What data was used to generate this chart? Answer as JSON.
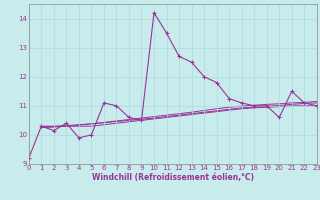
{
  "xlabel": "Windchill (Refroidissement éolien,°C)",
  "background_color": "#c8ecec",
  "grid_color": "#aadddd",
  "line_color": "#993399",
  "xlim": [
    0,
    23
  ],
  "ylim": [
    9,
    14.5
  ],
  "yticks": [
    9,
    10,
    11,
    12,
    13,
    14
  ],
  "xticks": [
    0,
    1,
    2,
    3,
    4,
    5,
    6,
    7,
    8,
    9,
    10,
    11,
    12,
    13,
    14,
    15,
    16,
    17,
    18,
    19,
    20,
    21,
    22,
    23
  ],
  "main_x": [
    0,
    1,
    2,
    3,
    4,
    5,
    6,
    7,
    8,
    9,
    10,
    11,
    12,
    13,
    14,
    15,
    16,
    17,
    18,
    19,
    20,
    21,
    22,
    23
  ],
  "main_y": [
    9.2,
    10.3,
    10.15,
    10.4,
    9.9,
    10.0,
    11.1,
    11.0,
    10.6,
    10.5,
    14.2,
    13.5,
    12.7,
    12.5,
    12.0,
    11.8,
    11.25,
    11.1,
    11.0,
    11.0,
    10.6,
    11.5,
    11.1,
    11.0
  ],
  "trend1_x": [
    1,
    2,
    3,
    4,
    5,
    6,
    7,
    8,
    9,
    10,
    11,
    12,
    13,
    14,
    15,
    16,
    17,
    18,
    19,
    20,
    21,
    22,
    23
  ],
  "trend1_y": [
    10.3,
    10.3,
    10.3,
    10.3,
    10.3,
    10.35,
    10.4,
    10.45,
    10.5,
    10.55,
    10.6,
    10.65,
    10.7,
    10.75,
    10.8,
    10.85,
    10.9,
    10.93,
    10.95,
    10.97,
    11.0,
    11.0,
    11.0
  ],
  "trend2_x": [
    1,
    2,
    3,
    4,
    5,
    6,
    7,
    8,
    9,
    10,
    11,
    12,
    13,
    14,
    15,
    16,
    17,
    18,
    19,
    20,
    21,
    22,
    23
  ],
  "trend2_y": [
    10.28,
    10.29,
    10.32,
    10.35,
    10.38,
    10.42,
    10.46,
    10.5,
    10.54,
    10.58,
    10.63,
    10.68,
    10.73,
    10.78,
    10.83,
    10.88,
    10.93,
    10.96,
    10.99,
    11.01,
    11.05,
    11.08,
    11.1
  ],
  "trend3_x": [
    1,
    2,
    3,
    4,
    5,
    6,
    7,
    8,
    9,
    10,
    11,
    12,
    13,
    14,
    15,
    16,
    17,
    18,
    19,
    20,
    21,
    22,
    23
  ],
  "trend3_y": [
    10.25,
    10.27,
    10.3,
    10.34,
    10.38,
    10.43,
    10.48,
    10.53,
    10.58,
    10.63,
    10.68,
    10.73,
    10.78,
    10.84,
    10.9,
    10.95,
    10.99,
    11.02,
    11.05,
    11.07,
    11.1,
    11.12,
    11.15
  ]
}
